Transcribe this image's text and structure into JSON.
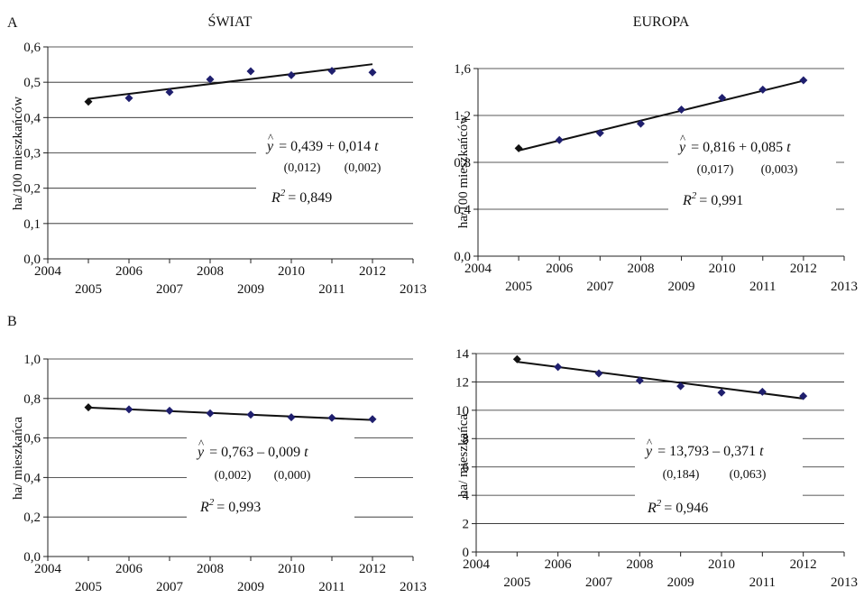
{
  "section_labels": {
    "top": "A",
    "bottom": "B"
  },
  "colors": {
    "point": "#1f1f6e",
    "first_point": "#111111",
    "trend": "#111111",
    "grid": "#222222",
    "axis": "#222222"
  },
  "chart_data": [
    {
      "id": "world_a",
      "type": "scatter",
      "title": "ŚWIAT",
      "ylabel": "ha/100 mieszkańców",
      "xlim": [
        2004,
        2013
      ],
      "ylim": [
        0,
        0.6
      ],
      "x_ticks_upper": [
        "2004",
        "2006",
        "2008",
        "2010",
        "2012"
      ],
      "x_ticks_lower": [
        "2005",
        "2007",
        "2009",
        "2011",
        "2013"
      ],
      "y_ticks": [
        "0,0",
        "0,1",
        "0,2",
        "0,3",
        "0,4",
        "0,5",
        "0,6"
      ],
      "x": [
        2005,
        2006,
        2007,
        2008,
        2009,
        2010,
        2011,
        2012
      ],
      "y": [
        0.445,
        0.455,
        0.472,
        0.508,
        0.531,
        0.52,
        0.532,
        0.528
      ],
      "trend": {
        "intercept": 0.439,
        "slope": 0.014
      },
      "equation": {
        "lhs": "= 0,439 + 0,014",
        "var": "t",
        "se1": "(0,012)",
        "se2": "(0,002)",
        "r2": "= 0,849"
      },
      "grid": true
    },
    {
      "id": "europe_a",
      "type": "scatter",
      "title": "EUROPA",
      "ylabel": "ha/100 mieszkańców",
      "xlim": [
        2004,
        2013
      ],
      "ylim": [
        0,
        1.6
      ],
      "x_ticks_upper": [
        "2004",
        "2006",
        "2008",
        "2010",
        "2012"
      ],
      "x_ticks_lower": [
        "2005",
        "2007",
        "2009",
        "2011",
        "2013"
      ],
      "y_ticks": [
        "0,0",
        "0,4",
        "0,8",
        "1,2",
        "1,6"
      ],
      "x": [
        2005,
        2006,
        2007,
        2008,
        2009,
        2010,
        2011,
        2012
      ],
      "y": [
        0.92,
        0.99,
        1.05,
        1.13,
        1.25,
        1.35,
        1.42,
        1.5
      ],
      "trend": {
        "intercept": 0.816,
        "slope": 0.085
      },
      "equation": {
        "lhs": "= 0,816 + 0,085",
        "var": "t",
        "se1": "(0,017)",
        "se2": "(0,003)",
        "r2": "= 0,991"
      },
      "grid": true
    },
    {
      "id": "world_b",
      "type": "scatter",
      "title": "",
      "ylabel": "ha/ mieszkańca",
      "xlim": [
        2004,
        2013
      ],
      "ylim": [
        0,
        1.0
      ],
      "x_ticks_upper": [
        "2004",
        "2006",
        "2008",
        "2010",
        "2012"
      ],
      "x_ticks_lower": [
        "2005",
        "2007",
        "2009",
        "2011",
        "2013"
      ],
      "y_ticks": [
        "0,0",
        "0,2",
        "0,4",
        "0,6",
        "0,8",
        "1,0"
      ],
      "x": [
        2005,
        2006,
        2007,
        2008,
        2009,
        2010,
        2011,
        2012
      ],
      "y": [
        0.755,
        0.745,
        0.738,
        0.725,
        0.718,
        0.705,
        0.702,
        0.695
      ],
      "trend": {
        "intercept": 0.763,
        "slope": -0.009
      },
      "equation": {
        "lhs": "= 0,763 – 0,009",
        "var": "t",
        "se1": "(0,002)",
        "se2": "(0,000)",
        "r2": "= 0,993"
      },
      "grid": true
    },
    {
      "id": "europe_b",
      "type": "scatter",
      "title": "",
      "ylabel": "ha/ mieszkańca",
      "xlim": [
        2004,
        2013
      ],
      "ylim": [
        0,
        14
      ],
      "x_ticks_upper": [
        "2004",
        "2006",
        "2008",
        "2010",
        "2012"
      ],
      "x_ticks_lower": [
        "2005",
        "2007",
        "2009",
        "2011",
        "2013"
      ],
      "y_ticks": [
        "0",
        "2",
        "4",
        "6",
        "8",
        "10",
        "12",
        "14"
      ],
      "x": [
        2005,
        2006,
        2007,
        2008,
        2009,
        2010,
        2011,
        2012
      ],
      "y": [
        13.6,
        13.05,
        12.6,
        12.1,
        11.7,
        11.25,
        11.3,
        11.0
      ],
      "trend": {
        "intercept": 13.793,
        "slope": -0.371
      },
      "equation": {
        "lhs": "= 13,793 – 0,371",
        "var": "t",
        "se1": "(0,184)",
        "se2": "(0,063)",
        "r2": "= 0,946"
      },
      "grid": true
    }
  ]
}
